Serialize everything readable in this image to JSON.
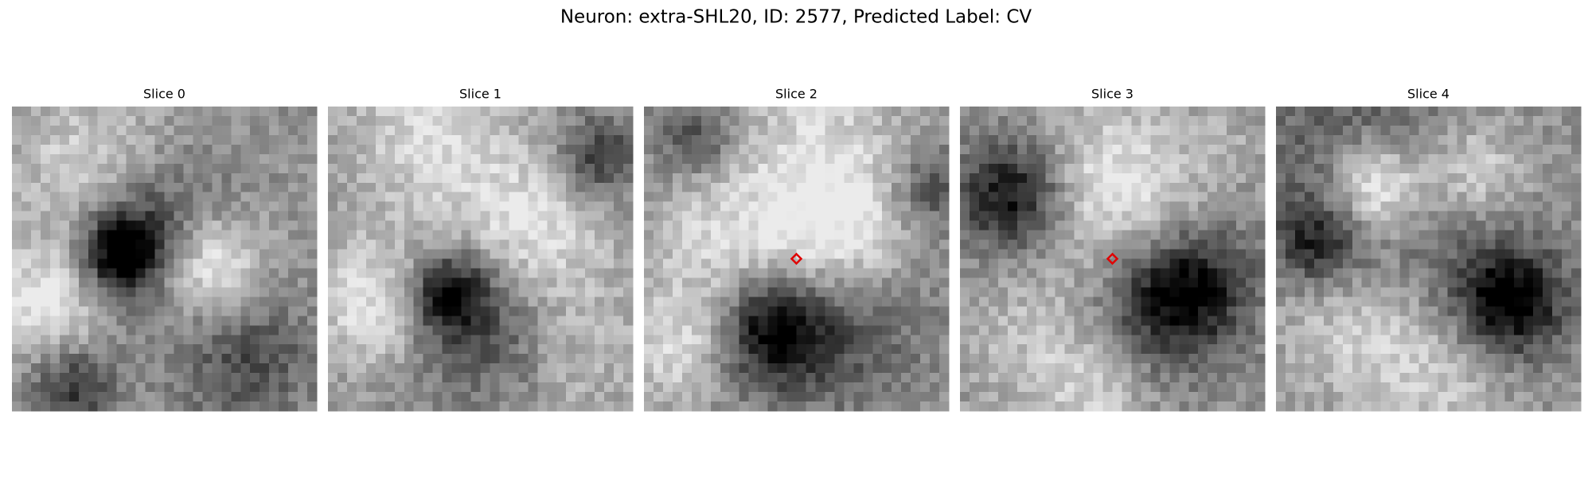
{
  "title": "Neuron: extra-SHL20, ID: 2577, Predicted Label: CV",
  "panels": [
    {
      "title": "Slice 0"
    },
    {
      "title": "Slice 1"
    },
    {
      "title": "Slice 2"
    },
    {
      "title": "Slice 3"
    },
    {
      "title": "Slice 4"
    }
  ]
}
